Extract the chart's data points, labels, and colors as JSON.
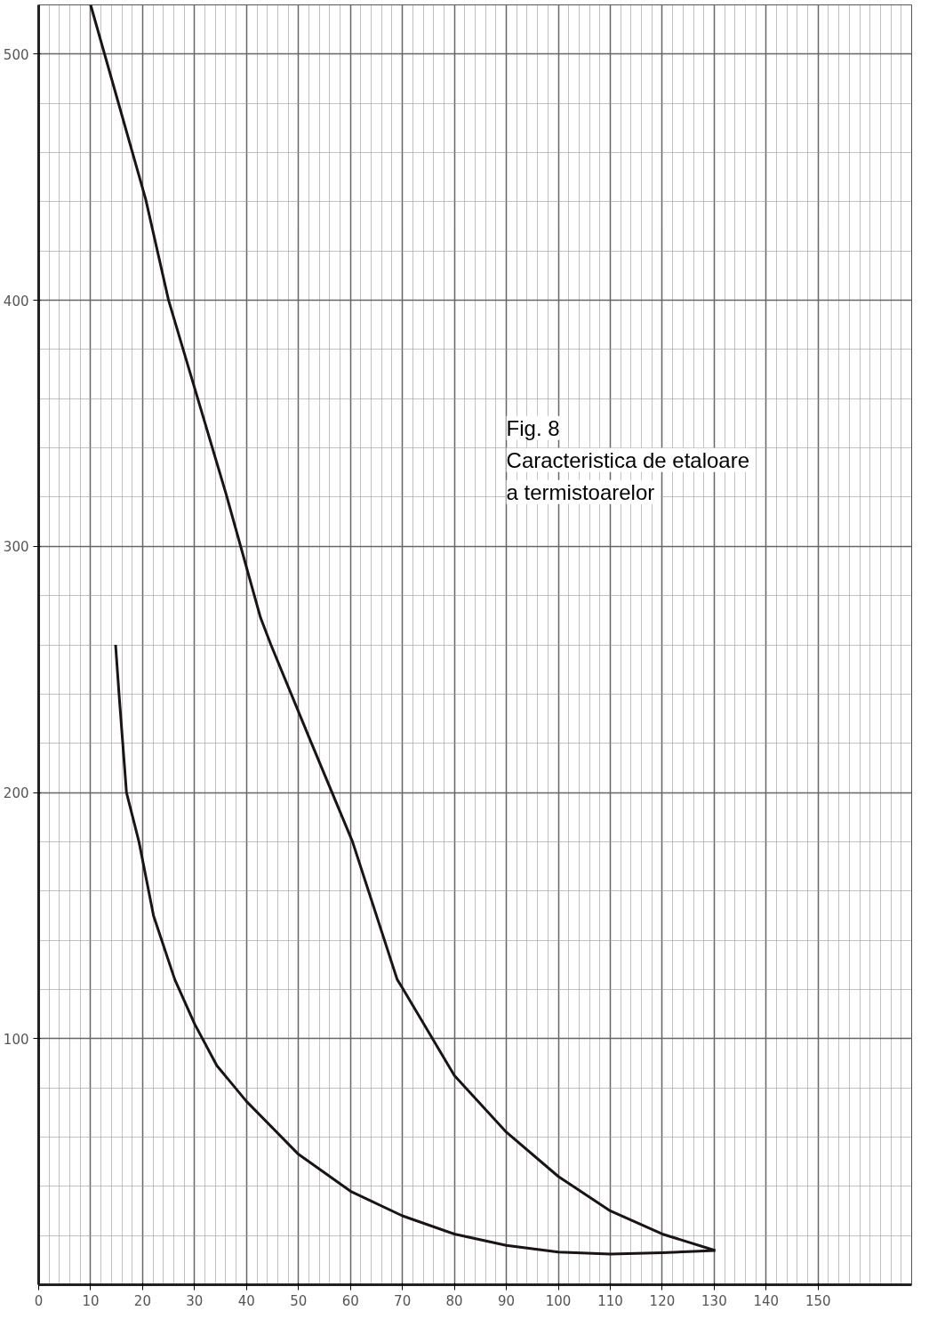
{
  "chart_data": {
    "type": "line",
    "title": "Fig. 8",
    "subtitle": "Caracteristica de etaloare a termistoarelor",
    "xlim": [
      0,
      168
    ],
    "ylim": [
      0,
      520
    ],
    "xticks": [
      0,
      10,
      20,
      30,
      40,
      50,
      60,
      70,
      80,
      90,
      100,
      110,
      120,
      130,
      140,
      150
    ],
    "yticks": [
      100,
      200,
      300,
      400,
      500
    ],
    "grid": true,
    "marker": "none",
    "line_style": "solid",
    "series": [
      {
        "color": "#1a1414",
        "x": [
          10,
          20.6,
          25,
          36.1,
          42.7,
          44.7,
          52.5,
          60.4,
          69,
          70,
          80,
          90,
          100,
          110,
          120,
          130.2
        ],
        "values": [
          520,
          441,
          400,
          321,
          271,
          260,
          220,
          180,
          124,
          120.6,
          85,
          62,
          44,
          30,
          20.6,
          13.9
        ]
      },
      {
        "color": "#1a1414",
        "x": [
          14.8,
          15.5,
          16.9,
          19.3,
          22.1,
          26.2,
          30,
          34.3,
          40,
          50,
          60,
          70,
          80,
          90,
          100,
          110,
          120,
          130.2
        ],
        "values": [
          260,
          239,
          200,
          180,
          150,
          124,
          106,
          89,
          74.5,
          53,
          38,
          28,
          20.6,
          16,
          13.3,
          12.5,
          13,
          13.9
        ]
      }
    ]
  }
}
